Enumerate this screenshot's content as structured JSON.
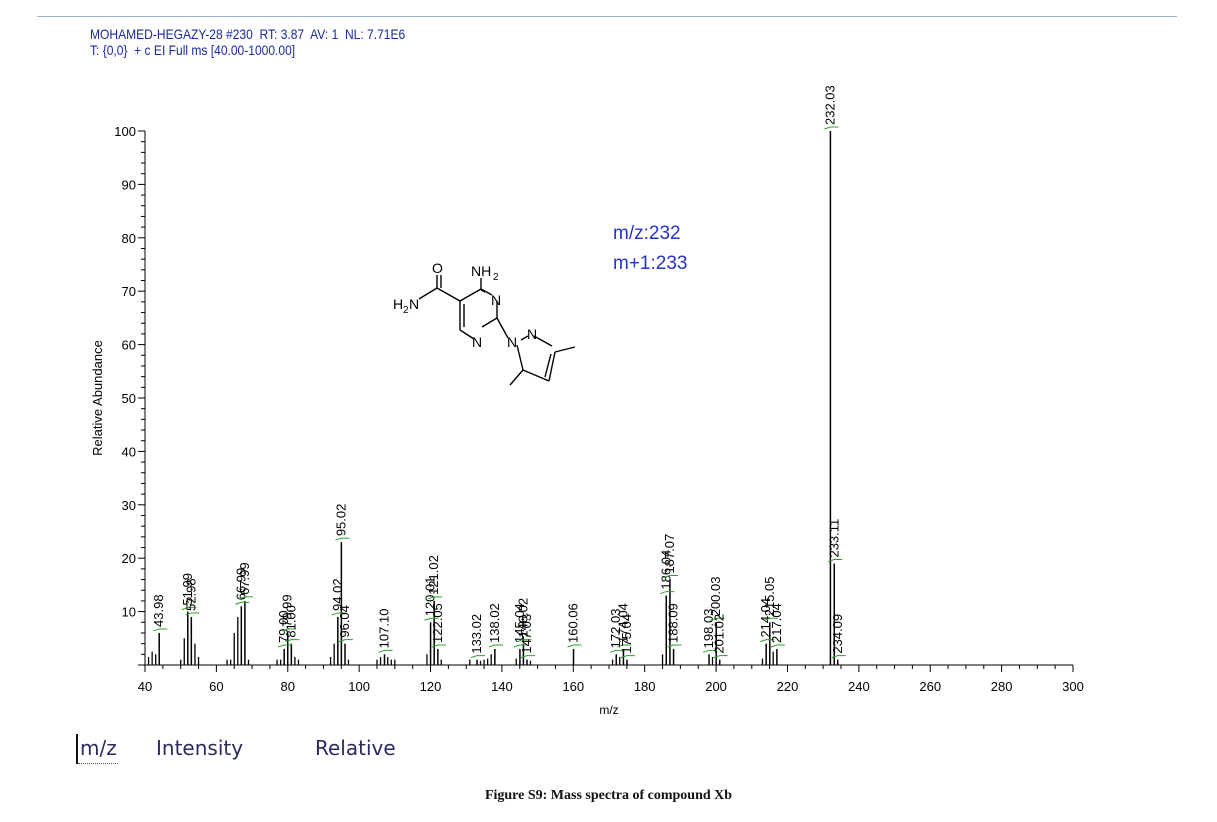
{
  "header": {
    "line1": "MOHAMED-HEGAZY-28 #230  RT: 3.87  AV: 1  NL: 7.71E6",
    "line2": "T: {0,0}  + c EI Full ms [40.00-1000.00]"
  },
  "annotation": {
    "mz": "m/z:232",
    "mplus1": "m+1:233"
  },
  "structure": {
    "o_label": "O",
    "nh2_label": "NH",
    "nh2_sub": "2",
    "h2n_label": "H",
    "h2n_sub": "2",
    "h2n_n": "N",
    "n_label": "N"
  },
  "table_header": {
    "col1": "m/z",
    "col2": "Intensity",
    "col3": "Relative"
  },
  "caption": "Figure S9: Mass spectra of compound Xb",
  "colors": {
    "header_text": "#1a2a9e",
    "annotation_text": "#2433c8",
    "label_connector": "#2ca02c",
    "bars": "#000000"
  },
  "chart_data": {
    "type": "bar",
    "xlabel": "m/z",
    "ylabel": "Relative Abundance",
    "xlim": [
      40,
      300
    ],
    "ylim": [
      0,
      100
    ],
    "xticks": [
      40,
      60,
      80,
      100,
      120,
      140,
      160,
      180,
      200,
      220,
      240,
      260,
      280,
      300
    ],
    "yticks": [
      10,
      20,
      30,
      40,
      50,
      60,
      70,
      80,
      90,
      100
    ],
    "labeled_peaks": [
      {
        "mz": 43.98,
        "label": "43.98",
        "y": 6
      },
      {
        "mz": 51.99,
        "label": "51.99",
        "y": 10
      },
      {
        "mz": 52.98,
        "label": "52.98",
        "y": 9
      },
      {
        "mz": 66.99,
        "label": "66.99",
        "y": 11
      },
      {
        "mz": 67.99,
        "label": "67.99",
        "y": 12
      },
      {
        "mz": 79.0,
        "label": "79.00",
        "y": 3
      },
      {
        "mz": 79.99,
        "label": "79.99",
        "y": 6
      },
      {
        "mz": 81.0,
        "label": "81.00",
        "y": 4
      },
      {
        "mz": 94.02,
        "label": "94.02",
        "y": 9
      },
      {
        "mz": 95.02,
        "label": "95.02",
        "y": 23
      },
      {
        "mz": 96.04,
        "label": "96.04",
        "y": 4
      },
      {
        "mz": 107.1,
        "label": "107.10",
        "y": 2
      },
      {
        "mz": 120.01,
        "label": "120.01",
        "y": 8
      },
      {
        "mz": 121.02,
        "label": "121.02",
        "y": 12
      },
      {
        "mz": 122.05,
        "label": "122.05",
        "y": 3
      },
      {
        "mz": 133.02,
        "label": "133.02",
        "y": 1
      },
      {
        "mz": 138.02,
        "label": "138.02",
        "y": 3
      },
      {
        "mz": 145.04,
        "label": "145.04",
        "y": 3
      },
      {
        "mz": 146.02,
        "label": "146.02",
        "y": 4
      },
      {
        "mz": 147.03,
        "label": "147.03",
        "y": 1
      },
      {
        "mz": 160.06,
        "label": "160.06",
        "y": 3
      },
      {
        "mz": 172.03,
        "label": "172.03",
        "y": 2
      },
      {
        "mz": 174.04,
        "label": "174.04",
        "y": 3
      },
      {
        "mz": 175.04,
        "label": "175.04",
        "y": 1
      },
      {
        "mz": 186.04,
        "label": "186.04",
        "y": 13
      },
      {
        "mz": 187.07,
        "label": "187.07",
        "y": 16
      },
      {
        "mz": 188.09,
        "label": "188.09",
        "y": 3
      },
      {
        "mz": 198.03,
        "label": "198.03",
        "y": 2
      },
      {
        "mz": 200.03,
        "label": "200.03",
        "y": 8
      },
      {
        "mz": 201.02,
        "label": "201.02",
        "y": 1
      },
      {
        "mz": 214.04,
        "label": "214.04",
        "y": 4
      },
      {
        "mz": 215.05,
        "label": "215.05",
        "y": 8
      },
      {
        "mz": 217.04,
        "label": "217.04",
        "y": 3
      },
      {
        "mz": 232.03,
        "label": "232.03",
        "y": 100
      },
      {
        "mz": 233.11,
        "label": "233.11",
        "y": 19
      },
      {
        "mz": 234.09,
        "label": "234.09",
        "y": 1
      }
    ],
    "minor_peaks": [
      {
        "mz": 41.0,
        "y": 1.5
      },
      {
        "mz": 42.0,
        "y": 2.5
      },
      {
        "mz": 43.0,
        "y": 2
      },
      {
        "mz": 50.0,
        "y": 1
      },
      {
        "mz": 51.0,
        "y": 5
      },
      {
        "mz": 54.0,
        "y": 4
      },
      {
        "mz": 55.0,
        "y": 1.5
      },
      {
        "mz": 63.0,
        "y": 1
      },
      {
        "mz": 64.0,
        "y": 1
      },
      {
        "mz": 65.0,
        "y": 6
      },
      {
        "mz": 66.0,
        "y": 9
      },
      {
        "mz": 69.0,
        "y": 1
      },
      {
        "mz": 77.0,
        "y": 1
      },
      {
        "mz": 78.0,
        "y": 1
      },
      {
        "mz": 82.0,
        "y": 1.5
      },
      {
        "mz": 83.0,
        "y": 1
      },
      {
        "mz": 92.0,
        "y": 1.5
      },
      {
        "mz": 93.0,
        "y": 4
      },
      {
        "mz": 97.0,
        "y": 1
      },
      {
        "mz": 105.0,
        "y": 1
      },
      {
        "mz": 106.0,
        "y": 1.5
      },
      {
        "mz": 108.0,
        "y": 1.5
      },
      {
        "mz": 109.0,
        "y": 1
      },
      {
        "mz": 110.0,
        "y": 1
      },
      {
        "mz": 119.0,
        "y": 2
      },
      {
        "mz": 123.0,
        "y": 1
      },
      {
        "mz": 131.0,
        "y": 1
      },
      {
        "mz": 134.0,
        "y": 0.8
      },
      {
        "mz": 135.0,
        "y": 1
      },
      {
        "mz": 136.0,
        "y": 1.2
      },
      {
        "mz": 137.0,
        "y": 2
      },
      {
        "mz": 144.0,
        "y": 1.2
      },
      {
        "mz": 148.0,
        "y": 0.8
      },
      {
        "mz": 171.0,
        "y": 1
      },
      {
        "mz": 173.0,
        "y": 1.5
      },
      {
        "mz": 185.0,
        "y": 2
      },
      {
        "mz": 199.0,
        "y": 1.5
      },
      {
        "mz": 213.0,
        "y": 1.2
      },
      {
        "mz": 216.0,
        "y": 2.5
      }
    ]
  }
}
